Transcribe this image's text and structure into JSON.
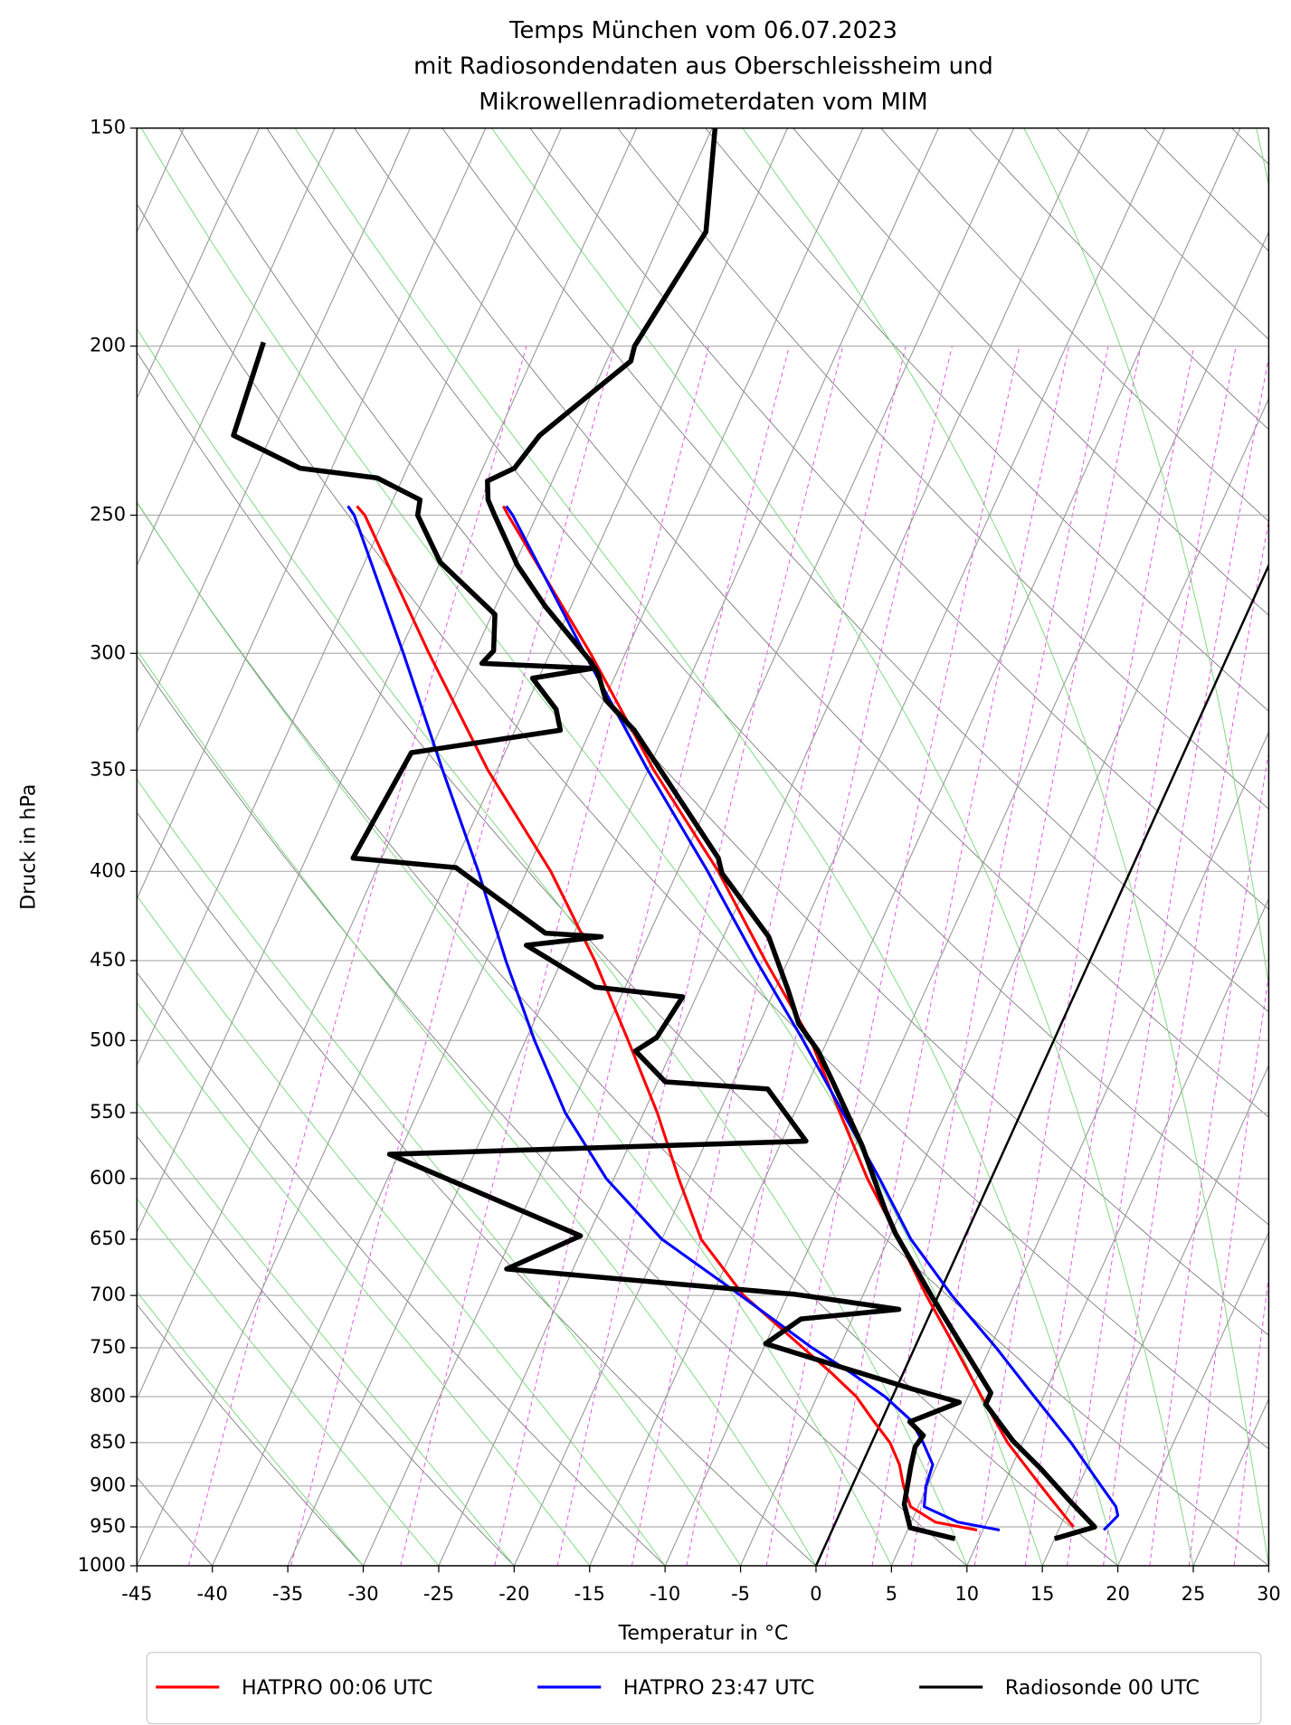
{
  "chart_data": {
    "type": "skewt",
    "title": [
      "Temps München vom 06.07.2023",
      "mit Radiosondendaten aus Oberschleissheim und",
      "Mikrowellenradiometerdaten vom MIM"
    ],
    "x_label": "Temperatur in °C",
    "y_label": "Druck in hPa",
    "xlim": [
      -45,
      30
    ],
    "xticks": [
      -45,
      -40,
      -35,
      -30,
      -25,
      -20,
      -15,
      -10,
      -5,
      0,
      5,
      10,
      15,
      20,
      25,
      30
    ],
    "ylim": [
      1000,
      150
    ],
    "log_y": true,
    "yticks": [
      150,
      200,
      250,
      300,
      350,
      400,
      450,
      500,
      550,
      600,
      650,
      700,
      750,
      800,
      850,
      900,
      950,
      1000
    ],
    "grid": true,
    "legend": "bottom",
    "series": [
      {
        "name": "HATPRO 00:06 UTC",
        "color": "#ff0000",
        "width": 2.5,
        "temperature": {
          "pressure": [
            950,
            900,
            850,
            800,
            750,
            700,
            650,
            600,
            550,
            500,
            450,
            400,
            350,
            300,
            250,
            247
          ],
          "values": [
            15.9,
            12.5,
            9.0,
            5.9,
            2.7,
            -0.8,
            -4.3,
            -8.2,
            -12.0,
            -16.1,
            -21.5,
            -27.3,
            -34.6,
            -42.3,
            -51.9,
            -52.5
          ]
        },
        "dewpoint": {
          "pressure": [
            954,
            944,
            925,
            900,
            875,
            850,
            825,
            800,
            775,
            750,
            700,
            650,
            600,
            550,
            500,
            450,
            400,
            350,
            300,
            250,
            247
          ],
          "values": [
            9.6,
            6.6,
            4.5,
            3.4,
            2.5,
            1.2,
            -0.6,
            -2.4,
            -4.8,
            -7.4,
            -12.9,
            -17.4,
            -20.7,
            -24.1,
            -28.2,
            -32.8,
            -38.4,
            -45.6,
            -53.0,
            -61.4,
            -62.2
          ]
        }
      },
      {
        "name": "HATPRO 23:47 UTC",
        "color": "#0000ff",
        "width": 2.5,
        "temperature": {
          "pressure": [
            954,
            936,
            925,
            900,
            850,
            800,
            750,
            700,
            650,
            600,
            550,
            500,
            450,
            400,
            350,
            300,
            250,
            247
          ],
          "values": [
            18.0,
            18.5,
            18.1,
            16.5,
            13.2,
            9.4,
            5.4,
            0.9,
            -3.5,
            -7.4,
            -11.8,
            -16.6,
            -22.1,
            -28.0,
            -35.0,
            -42.7,
            -51.6,
            -52.3
          ]
        },
        "dewpoint": {
          "pressure": [
            954,
            944,
            925,
            900,
            875,
            850,
            825,
            800,
            775,
            750,
            700,
            650,
            600,
            550,
            500,
            450,
            400,
            350,
            300,
            250,
            247
          ],
          "values": [
            11.1,
            8.1,
            5.4,
            4.9,
            4.7,
            3.4,
            1.9,
            -0.5,
            -3.5,
            -6.8,
            -13.1,
            -20.0,
            -25.5,
            -30.2,
            -34.4,
            -38.7,
            -43.2,
            -48.6,
            -54.7,
            -62.1,
            -62.8
          ]
        }
      },
      {
        "name": "Radiosonde 00 UTC",
        "color": "#000000",
        "width": 4.5,
        "temperature": {
          "pressure": [
            965,
            950,
            917,
            880,
            848,
            808,
            796,
            754,
            701,
            645,
            625,
            575,
            528,
            507,
            489,
            468,
            436,
            401,
            393,
            332,
            319,
            308,
            303,
            282,
            267,
            250,
            245,
            239,
            235,
            225,
            212,
            204,
            200,
            172,
            150
          ],
          "values": [
            15.0,
            17.3,
            14.8,
            12.0,
            9.3,
            6.4,
            6.4,
            3.5,
            -0.4,
            -4.7,
            -6.1,
            -9.5,
            -13.4,
            -15.3,
            -17.4,
            -19.1,
            -22.0,
            -27.0,
            -27.7,
            -37.1,
            -39.9,
            -41.2,
            -42.1,
            -46.7,
            -49.8,
            -52.8,
            -53.7,
            -54.3,
            -52.9,
            -52.2,
            -49.9,
            -48.4,
            -48.6,
            -47.3,
            -49.8
          ]
        },
        "dewpoint": {
          "pressure": [
            965,
            951,
            922,
            877,
            855,
            842,
            827,
            806,
            792,
            771,
            746,
            722,
            713,
            699,
            676,
            647,
            581,
            571,
            533,
            528,
            507,
            498,
            472,
            466,
            441,
            436,
            434,
            398,
            393,
            342,
            332,
            323,
            310,
            306,
            304,
            299,
            285,
            266,
            250,
            245,
            238,
            235,
            225,
            199
          ],
          "values": [
            8.4,
            5.1,
            4.0,
            3.3,
            3.0,
            3.2,
            1.9,
            4.6,
            1.1,
            -3.9,
            -10.0,
            -8.4,
            -2.2,
            -9.5,
            -29.4,
            -25.5,
            -40.6,
            -13.4,
            -17.5,
            -24.5,
            -27.4,
            -26.4,
            -25.9,
            -32.0,
            -37.8,
            -33.1,
            -36.9,
            -44.8,
            -51.9,
            -51.2,
            -42.0,
            -42.9,
            -45.4,
            -41.7,
            -49.2,
            -48.8,
            -49.8,
            -55.0,
            -57.9,
            -58.2,
            -61.7,
            -67.1,
            -72.5,
            -73.3
          ]
        }
      }
    ]
  }
}
